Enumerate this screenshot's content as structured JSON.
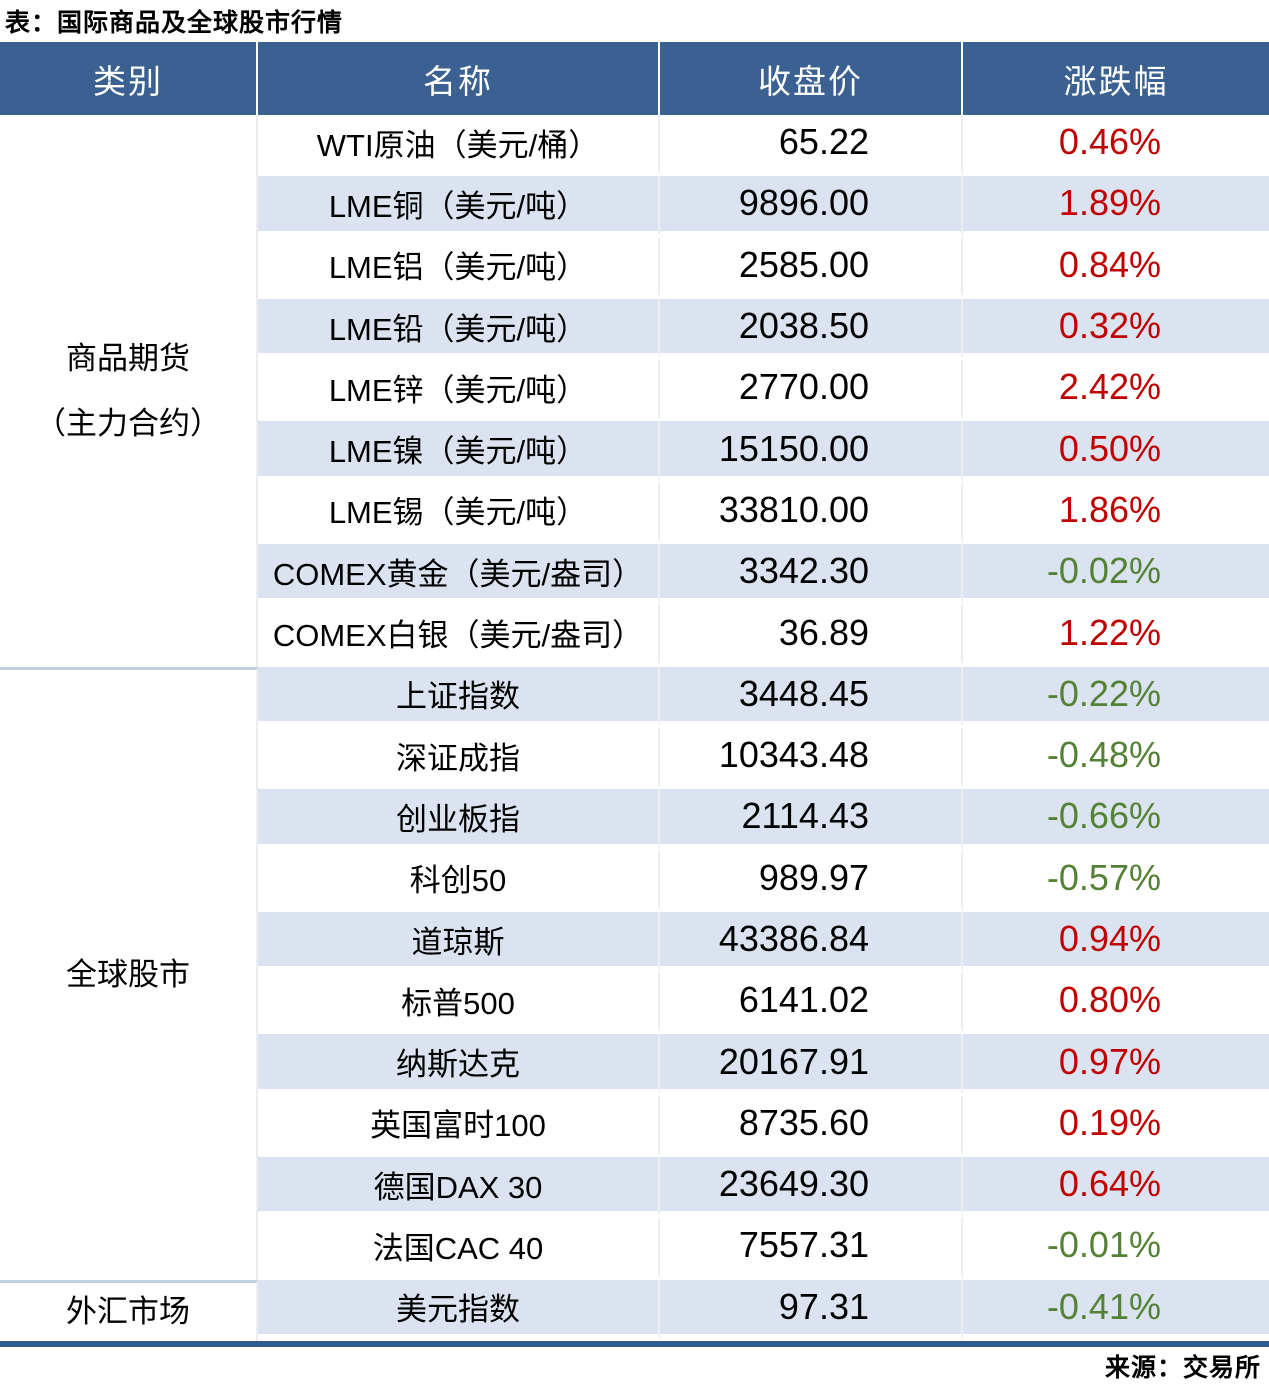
{
  "title": "表：国际商品及全球股市行情",
  "source_note": "来源：交易所",
  "chart_data": {
    "type": "table",
    "title": "国际商品及全球股市行情",
    "columns": [
      "类别",
      "名称",
      "收盘价",
      "涨跌幅"
    ],
    "colors": {
      "header_bg": "#3A6191",
      "header_text": "#FFFFFF",
      "row_alt_bg": "#DAE3EF",
      "positive_change": "#C00000",
      "negative_change": "#548235",
      "bottom_border": "#2E5C8F"
    },
    "groups": [
      {
        "category": "商品期货\n（主力合约）",
        "rows": [
          {
            "name": "WTI原油（美元/桶）",
            "close": "65.22",
            "change": "0.46%",
            "direction": "up"
          },
          {
            "name": "LME铜（美元/吨）",
            "close": "9896.00",
            "change": "1.89%",
            "direction": "up"
          },
          {
            "name": "LME铝（美元/吨）",
            "close": "2585.00",
            "change": "0.84%",
            "direction": "up"
          },
          {
            "name": "LME铅（美元/吨）",
            "close": "2038.50",
            "change": "0.32%",
            "direction": "up"
          },
          {
            "name": "LME锌（美元/吨）",
            "close": "2770.00",
            "change": "2.42%",
            "direction": "up"
          },
          {
            "name": "LME镍（美元/吨）",
            "close": "15150.00",
            "change": "0.50%",
            "direction": "up"
          },
          {
            "name": "LME锡（美元/吨）",
            "close": "33810.00",
            "change": "1.86%",
            "direction": "up"
          },
          {
            "name": "COMEX黄金（美元/盎司）",
            "close": "3342.30",
            "change": "-0.02%",
            "direction": "down"
          },
          {
            "name": "COMEX白银（美元/盎司）",
            "close": "36.89",
            "change": "1.22%",
            "direction": "up"
          }
        ]
      },
      {
        "category": "全球股市",
        "rows": [
          {
            "name": "上证指数",
            "close": "3448.45",
            "change": "-0.22%",
            "direction": "down"
          },
          {
            "name": "深证成指",
            "close": "10343.48",
            "change": "-0.48%",
            "direction": "down"
          },
          {
            "name": "创业板指",
            "close": "2114.43",
            "change": "-0.66%",
            "direction": "down"
          },
          {
            "name": "科创50",
            "close": "989.97",
            "change": "-0.57%",
            "direction": "down"
          },
          {
            "name": "道琼斯",
            "close": "43386.84",
            "change": "0.94%",
            "direction": "up"
          },
          {
            "name": "标普500",
            "close": "6141.02",
            "change": "0.80%",
            "direction": "up"
          },
          {
            "name": "纳斯达克",
            "close": "20167.91",
            "change": "0.97%",
            "direction": "up"
          },
          {
            "name": "英国富时100",
            "close": "8735.60",
            "change": "0.19%",
            "direction": "up"
          },
          {
            "name": "德国DAX 30",
            "close": "23649.30",
            "change": "0.64%",
            "direction": "up"
          },
          {
            "name": "法国CAC 40",
            "close": "7557.31",
            "change": "-0.01%",
            "direction": "down"
          }
        ]
      },
      {
        "category": "外汇市场",
        "rows": [
          {
            "name": "美元指数",
            "close": "97.31",
            "change": "-0.41%",
            "direction": "down"
          }
        ]
      }
    ]
  }
}
